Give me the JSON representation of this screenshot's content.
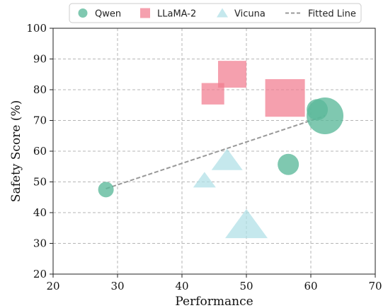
{
  "chart_data": {
    "type": "scatter",
    "title": "",
    "xlabel": "Performance",
    "ylabel": "Safety Score (%)",
    "xlim": [
      20,
      70
    ],
    "ylim": [
      20,
      100
    ],
    "xticks": [
      "20",
      "30",
      "40",
      "50",
      "60",
      "70"
    ],
    "yticks": [
      "20",
      "30",
      "40",
      "50",
      "60",
      "70",
      "80",
      "90",
      "100"
    ],
    "grid": true,
    "legend_position": "top-center",
    "series": [
      {
        "name": "Qwen",
        "marker": "circle",
        "color": "#5bb89a",
        "points": [
          {
            "x": 28.2,
            "y": 47.5,
            "size": "small"
          },
          {
            "x": 56.5,
            "y": 55.7,
            "size": "medium"
          },
          {
            "x": 61.0,
            "y": 73.5,
            "size": "medium"
          },
          {
            "x": 62.2,
            "y": 71.5,
            "size": "large"
          }
        ]
      },
      {
        "name": "LLaMA-2",
        "marker": "square",
        "color": "#f17c8f",
        "points": [
          {
            "x": 44.8,
            "y": 78.5,
            "size": "medium"
          },
          {
            "x": 47.8,
            "y": 84.8,
            "size": "medium-large"
          },
          {
            "x": 56.0,
            "y": 77.0,
            "size": "large"
          }
        ]
      },
      {
        "name": "Vicuna",
        "marker": "triangle",
        "color": "#aedfe6",
        "points": [
          {
            "x": 43.5,
            "y": 50.5,
            "size": "small"
          },
          {
            "x": 47.0,
            "y": 57.0,
            "size": "medium"
          },
          {
            "x": 50.0,
            "y": 36.0,
            "size": "large"
          }
        ]
      },
      {
        "name": "Fitted Line",
        "marker": "dashed-line",
        "color": "#999999",
        "points": [
          {
            "x": 28.2,
            "y": 47.8
          },
          {
            "x": 62.2,
            "y": 71.5
          }
        ]
      }
    ]
  }
}
